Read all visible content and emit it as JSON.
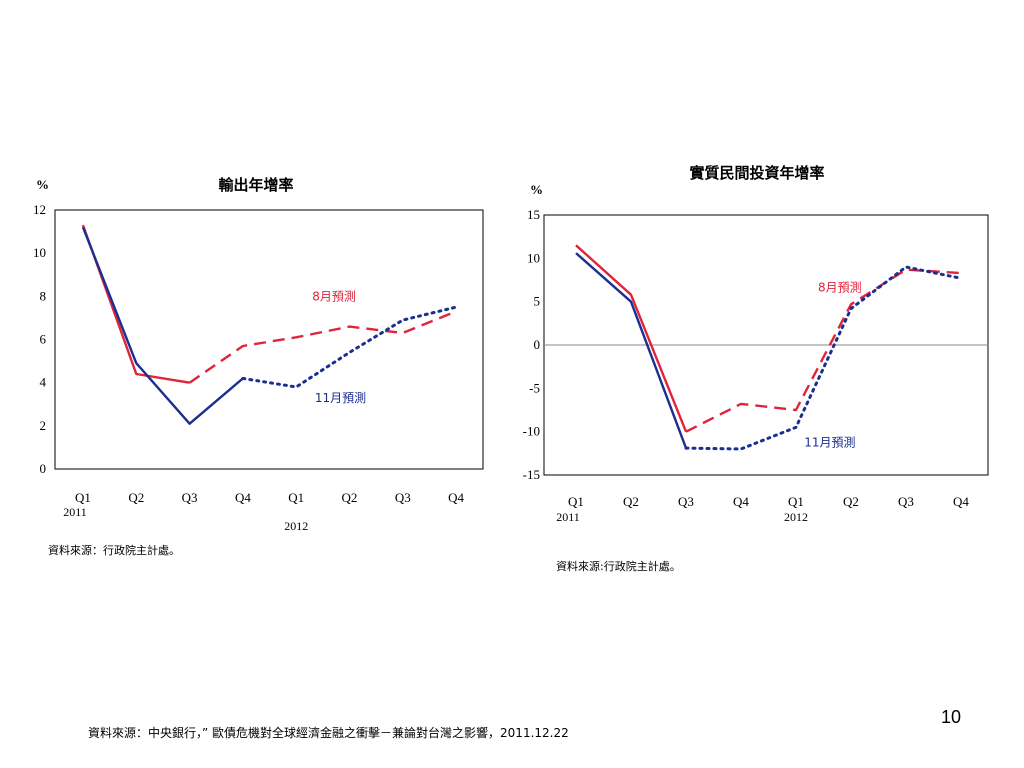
{
  "slide": {
    "page_number": "10",
    "footer_source": "資料來源：中央銀行，” 歐債危機對全球經濟金融之衝擊－兼論對台灣之影響，2011.12.22"
  },
  "colors": {
    "red": "#e0243a",
    "blue": "#1a2f8f",
    "axis": "#000000",
    "grid": "#888888"
  },
  "chart_data": [
    {
      "type": "line",
      "title": "輸出年增率",
      "unit": "%",
      "categories": [
        "Q1",
        "Q2",
        "Q3",
        "Q4",
        "Q1",
        "Q2",
        "Q3",
        "Q4"
      ],
      "year_labels": [
        {
          "index": 0,
          "label": "2011"
        },
        {
          "index": 4,
          "label": "2012"
        }
      ],
      "ylim": [
        0,
        12
      ],
      "yticks": [
        "0",
        "2",
        "4",
        "6",
        "8",
        "10",
        "12"
      ],
      "source": "資料來源：行政院主計處。",
      "annotations": [
        {
          "text": "8月預測",
          "color": "red",
          "x": 4.3,
          "y": 7.8
        },
        {
          "text": "11月預測",
          "color": "blue",
          "x": 4.35,
          "y": 3.1
        }
      ],
      "series": [
        {
          "color": "red",
          "style": "solid",
          "x": [
            0,
            1,
            2
          ],
          "values": [
            11.3,
            4.4,
            4.0
          ]
        },
        {
          "color": "red",
          "style": "dashed",
          "x": [
            2,
            3,
            4,
            5,
            6,
            7
          ],
          "values": [
            4.0,
            5.7,
            6.1,
            6.6,
            6.3,
            7.3
          ]
        },
        {
          "color": "blue",
          "style": "solid",
          "x": [
            0,
            1,
            2,
            3
          ],
          "values": [
            11.2,
            4.9,
            2.1,
            4.2
          ]
        },
        {
          "color": "blue",
          "style": "dotted",
          "x": [
            3,
            4,
            5,
            6,
            7
          ],
          "values": [
            4.2,
            3.8,
            5.4,
            6.9,
            7.5
          ]
        }
      ]
    },
    {
      "type": "line",
      "title": "實質民間投資年增率",
      "unit": "%",
      "categories": [
        "Q1",
        "Q2",
        "Q3",
        "Q4",
        "Q1",
        "Q2",
        "Q3",
        "Q4"
      ],
      "year_labels": [
        {
          "index": 0,
          "label": "2011"
        },
        {
          "index": 4,
          "label": "2012"
        }
      ],
      "ylim": [
        -15,
        15
      ],
      "yticks": [
        "-15",
        "-10",
        "-5",
        "0",
        "5",
        "10",
        "15"
      ],
      "zero_line": true,
      "source": "資料來源:行政院主計處。",
      "annotations": [
        {
          "text": "8月預測",
          "color": "red",
          "x": 4.4,
          "y": 6.2
        },
        {
          "text": "11月預測",
          "color": "blue",
          "x": 4.15,
          "y": -11.7
        }
      ],
      "series": [
        {
          "color": "red",
          "style": "solid",
          "x": [
            0,
            1,
            2
          ],
          "values": [
            11.5,
            5.8,
            -10.0
          ]
        },
        {
          "color": "red",
          "style": "dashed",
          "x": [
            2,
            3,
            4,
            5,
            6,
            7
          ],
          "values": [
            -10.0,
            -6.8,
            -7.5,
            4.7,
            8.7,
            8.3
          ]
        },
        {
          "color": "blue",
          "style": "solid",
          "x": [
            0,
            1,
            2
          ],
          "values": [
            10.6,
            5.0,
            -11.9
          ]
        },
        {
          "color": "blue",
          "style": "dotted",
          "x": [
            2,
            3,
            4,
            5,
            6,
            7
          ],
          "values": [
            -11.9,
            -12.0,
            -9.5,
            4.2,
            9.0,
            7.7
          ]
        }
      ]
    }
  ]
}
